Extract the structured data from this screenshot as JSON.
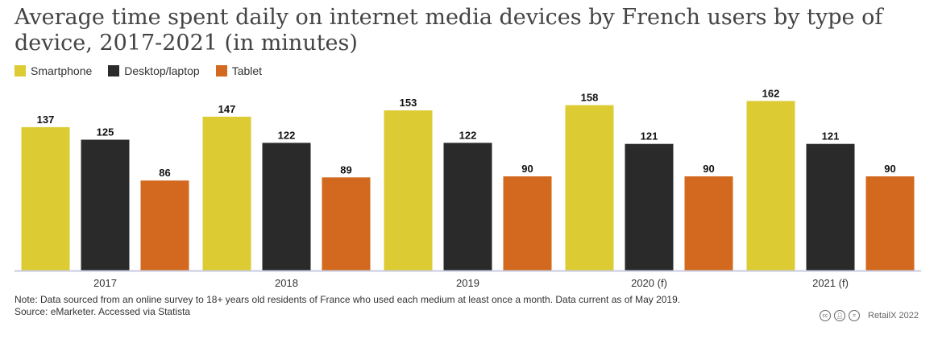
{
  "title": "Average time spent daily on internet media devices by French users by type of device, 2017-2021 (in minutes)",
  "legend": [
    {
      "label": "Smartphone",
      "color": "#dccb33"
    },
    {
      "label": "Desktop/laptop",
      "color": "#2a2a2a"
    },
    {
      "label": "Tablet",
      "color": "#d2691e"
    }
  ],
  "chart_data": {
    "type": "bar",
    "title": "Average time spent daily on internet media devices by French users by type of device, 2017-2021 (in minutes)",
    "categories": [
      "2017",
      "2018",
      "2019",
      "2020 (f)",
      "2021 (f)"
    ],
    "series": [
      {
        "name": "Smartphone",
        "color": "#dccb33",
        "values": [
          137,
          147,
          153,
          158,
          162
        ]
      },
      {
        "name": "Desktop/laptop",
        "color": "#2a2a2a",
        "values": [
          125,
          122,
          122,
          121,
          121
        ]
      },
      {
        "name": "Tablet",
        "color": "#d2691e",
        "values": [
          86,
          89,
          90,
          90,
          90
        ]
      }
    ],
    "ylim": [
      0,
      180
    ],
    "xlabel": "",
    "ylabel": "",
    "grid": false,
    "legend_position": "top-left"
  },
  "note": "Note: Data sourced from an online survey to 18+ years old residents of France who used each medium at least once a month. Data current as of May 2019.",
  "source": "Source: eMarketer. Accessed via Statista",
  "brand": "RetailX 2022",
  "icons": [
    "cc-icon",
    "by-icon",
    "nd-icon"
  ]
}
